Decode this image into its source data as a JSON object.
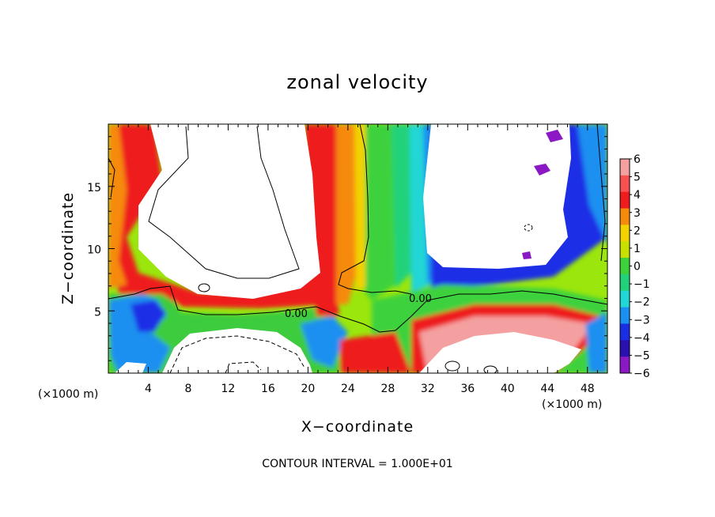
{
  "chart_data": {
    "type": "heatmap",
    "title": "zonal velocity",
    "xlabel": "X−coordinate",
    "ylabel": "Z−coordinate",
    "x_unit": "(×1000 m)",
    "y_unit": "(×1000 m)",
    "x_range": [
      0,
      50
    ],
    "y_range": [
      0,
      20
    ],
    "x_ticks": [
      4,
      8,
      12,
      16,
      20,
      24,
      28,
      32,
      36,
      40,
      44,
      48
    ],
    "y_ticks": [
      5,
      10,
      15
    ],
    "colorbar_levels": [
      6,
      5,
      4,
      3,
      2,
      1,
      0,
      -1,
      -2,
      -3,
      -4,
      -5,
      -6
    ],
    "colorbar_labels": [
      "6",
      "5",
      "4",
      "3",
      "2",
      "1",
      "0",
      "−1",
      "−2",
      "−3",
      "−4",
      "−5",
      "−6"
    ],
    "colorbar_colors": [
      "#f4a0a0",
      "#f65050",
      "#ee1c1c",
      "#f68a0a",
      "#f2d200",
      "#c8e000",
      "#3cd23c",
      "#22d27a",
      "#20d6d6",
      "#1a90f0",
      "#1a2ee6",
      "#2a10b0",
      "#8a18c4"
    ],
    "contour_labels": [
      "0.00",
      "0.00"
    ],
    "contour_interval_text": "CONTOUR INTERVAL = 1.000E+01",
    "saturation_color": "#ffffff"
  }
}
